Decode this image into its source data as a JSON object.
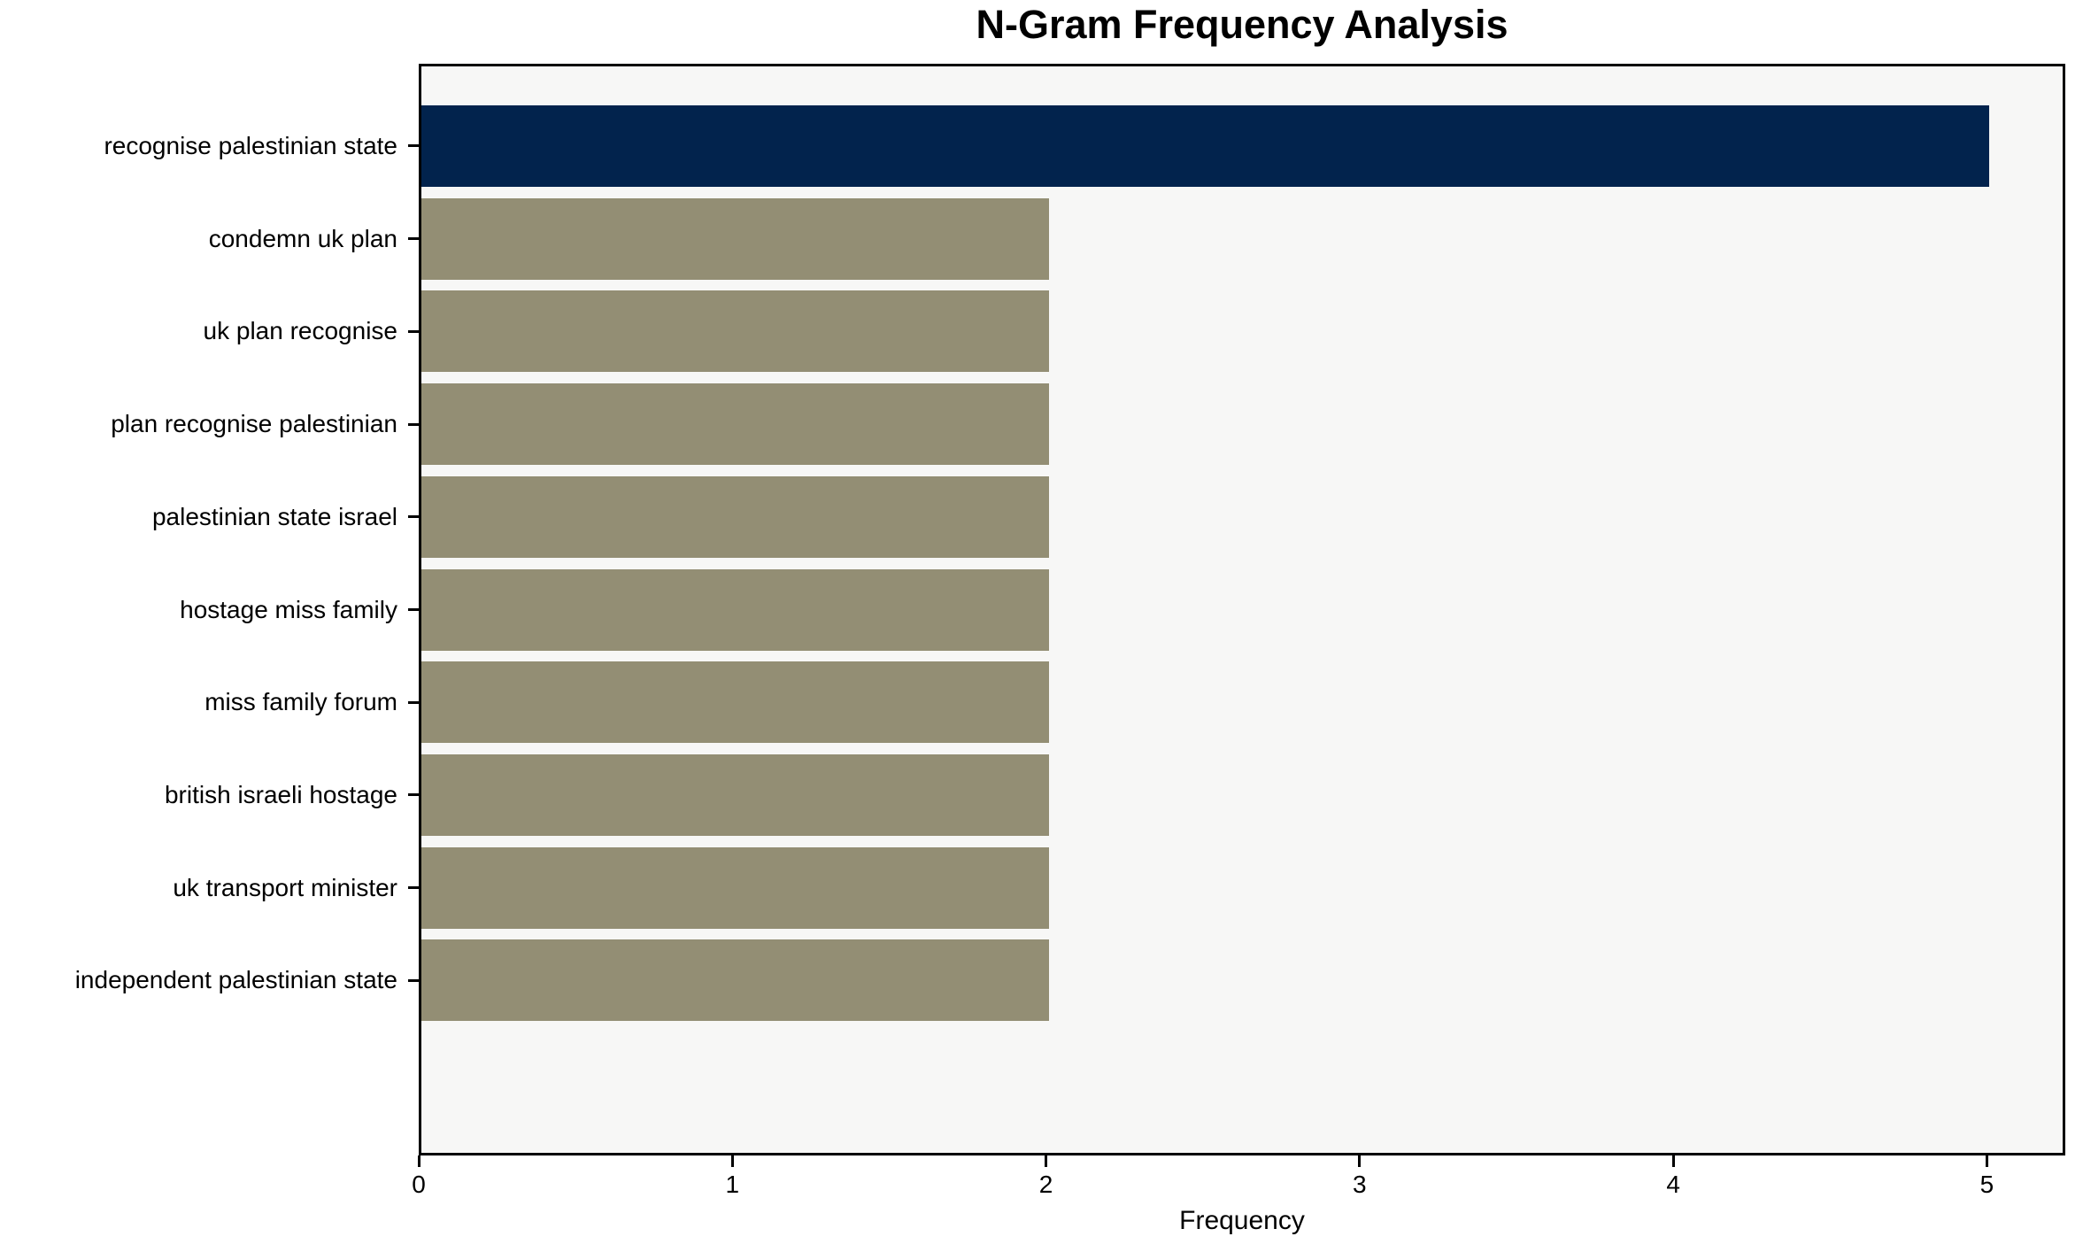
{
  "chart_data": {
    "type": "bar",
    "orientation": "horizontal",
    "title": "N-Gram Frequency Analysis",
    "xlabel": "Frequency",
    "ylabel": "",
    "categories": [
      "recognise palestinian state",
      "condemn uk plan",
      "uk plan recognise",
      "plan recognise palestinian",
      "palestinian state israel",
      "hostage miss family",
      "miss family forum",
      "british israeli hostage",
      "uk transport minister",
      "independent palestinian state"
    ],
    "values": [
      5,
      2,
      2,
      2,
      2,
      2,
      2,
      2,
      2,
      2
    ],
    "xticks": [
      0,
      1,
      2,
      3,
      4,
      5
    ],
    "xlim": [
      0,
      5.25
    ],
    "highlight_index": 0,
    "grid": false,
    "legend": null,
    "colors": {
      "bar_highlight": "#02234d",
      "bar_default": "#938e74",
      "plot_background": "#f7f7f6",
      "axis": "#000000",
      "text": "#000000",
      "page_background": "#ffffff"
    }
  }
}
